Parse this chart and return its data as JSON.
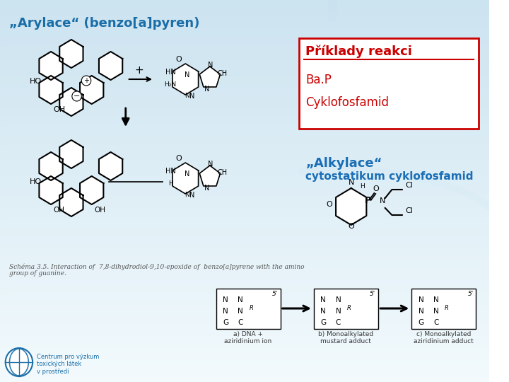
{
  "title_left": "„Arylace“ (benzo[a]pyren)",
  "title_left_color": "#1a6ea8",
  "box_title": "Příklady reakci",
  "box_title_color": "#cc0000",
  "box_items": [
    "Ba.P",
    "Cyklofosfamid"
  ],
  "box_items_color": "#cc0000",
  "box_border_color": "#cc0000",
  "alkylace_label": "„Alkylace“",
  "alkylace_sub": "cytostatikum cyklofosfamid",
  "alkylace_color": "#1a6eb5",
  "schema_caption_line1": "Schéma 3.5. Interaction of  7,8-dihydrodiol-9,10-epoxide of  benzo[a]pyrene with the amino",
  "schema_caption_line2": "group of guanine.",
  "schema_caption_color": "#555555",
  "bottom_labels": [
    "a) DNA +\naziridinium ion",
    "b) Monoalkylated\nmustard adduct",
    "c) Monoalkylated\naziridinium adduct"
  ],
  "bottom_label_color": "#333333",
  "bg_color_top": "#d0e4f0",
  "bg_color_bottom": "#eaf4fb",
  "centrum_text": "Centrum pro výzkum\ntoxických látek\nv prostředí",
  "centrum_color": "#1a6ea8"
}
